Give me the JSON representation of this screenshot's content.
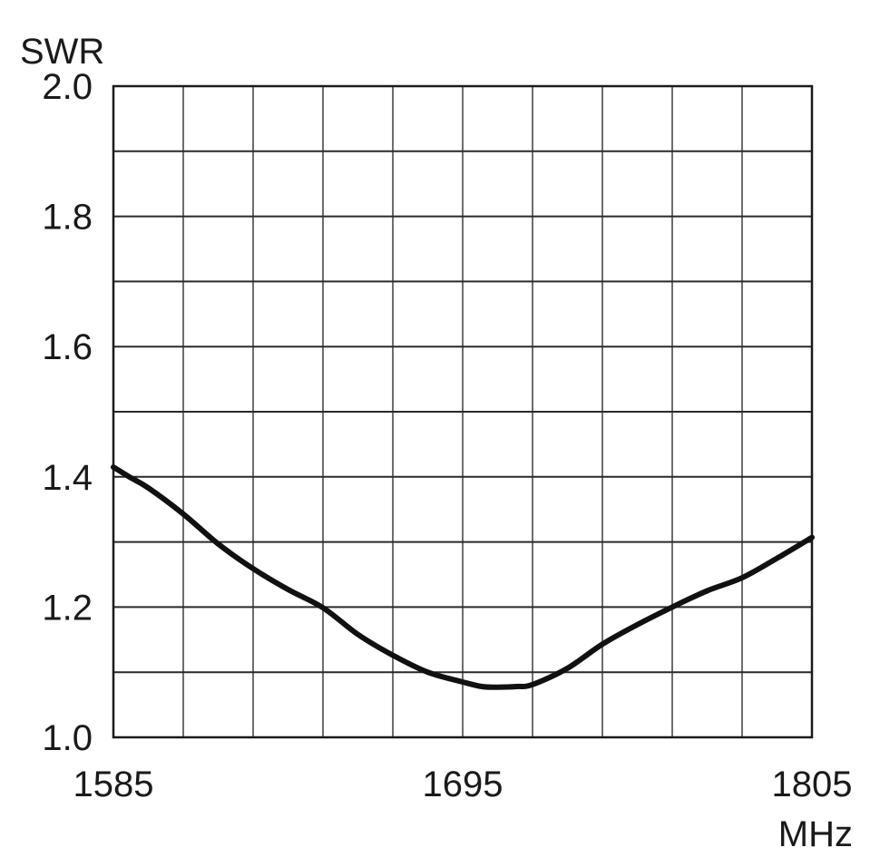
{
  "chart_data": {
    "type": "line",
    "title": "",
    "xlabel": "MHz",
    "ylabel": "SWR",
    "xlim": [
      1585,
      1805
    ],
    "ylim": [
      1.0,
      2.0
    ],
    "x_ticks": [
      "1585",
      "1695",
      "1805"
    ],
    "y_ticks": [
      "2.0",
      "1.8",
      "1.6",
      "1.4",
      "1.2",
      "1.0"
    ],
    "grid": true,
    "x_grid_divisions": 10,
    "y_grid_divisions": 10,
    "legend": "none",
    "series": [
      {
        "color": "#111111",
        "x": [
          1585,
          1590,
          1596,
          1607,
          1618,
          1629,
          1640,
          1651,
          1662,
          1673,
          1684,
          1695,
          1701,
          1706,
          1712,
          1717,
          1728,
          1739,
          1750,
          1761,
          1772,
          1783,
          1794,
          1805
        ],
        "y": [
          1.415,
          1.4,
          1.383,
          1.343,
          1.297,
          1.259,
          1.227,
          1.199,
          1.158,
          1.126,
          1.1,
          1.085,
          1.078,
          1.077,
          1.078,
          1.081,
          1.106,
          1.143,
          1.173,
          1.2,
          1.225,
          1.245,
          1.275,
          1.307
        ]
      }
    ]
  }
}
